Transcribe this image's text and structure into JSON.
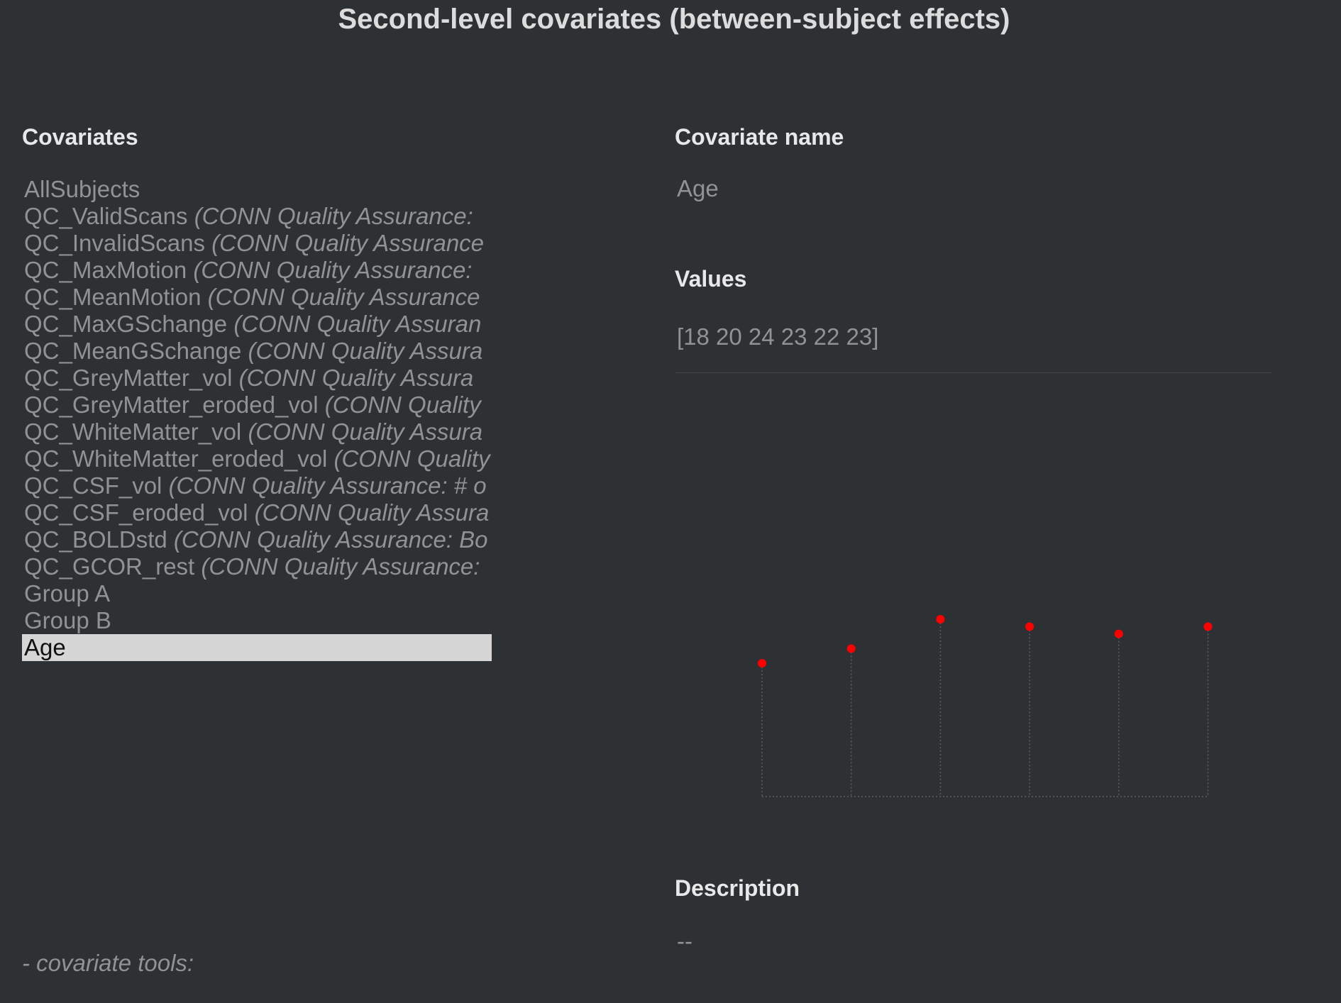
{
  "title": "Second-level covariates (between-subject effects)",
  "covariates_panel": {
    "label": "Covariates",
    "items": [
      {
        "name": "AllSubjects",
        "desc": ""
      },
      {
        "name": "QC_ValidScans",
        "desc": "(CONN Quality Assurance:"
      },
      {
        "name": "QC_InvalidScans",
        "desc": "(CONN Quality Assurance"
      },
      {
        "name": "QC_MaxMotion",
        "desc": "(CONN Quality Assurance:"
      },
      {
        "name": "QC_MeanMotion",
        "desc": "(CONN Quality Assurance"
      },
      {
        "name": "QC_MaxGSchange",
        "desc": "(CONN Quality Assuran"
      },
      {
        "name": "QC_MeanGSchange",
        "desc": "(CONN Quality Assura"
      },
      {
        "name": "QC_GreyMatter_vol",
        "desc": "(CONN Quality Assura"
      },
      {
        "name": "QC_GreyMatter_eroded_vol",
        "desc": "(CONN Quality"
      },
      {
        "name": "QC_WhiteMatter_vol",
        "desc": "(CONN Quality Assura"
      },
      {
        "name": "QC_WhiteMatter_eroded_vol",
        "desc": "(CONN Quality"
      },
      {
        "name": "QC_CSF_vol",
        "desc": "(CONN Quality Assurance: # o"
      },
      {
        "name": "QC_CSF_eroded_vol",
        "desc": "(CONN Quality Assura"
      },
      {
        "name": "QC_BOLDstd",
        "desc": "(CONN Quality Assurance: Bo"
      },
      {
        "name": "QC_GCOR_rest",
        "desc": "(CONN Quality Assurance:"
      },
      {
        "name": "Group A",
        "desc": ""
      },
      {
        "name": "Group B",
        "desc": ""
      },
      {
        "name": "Age",
        "desc": "",
        "selected": true
      }
    ]
  },
  "details": {
    "name_label": "Covariate name",
    "name_value": "Age",
    "values_label": "Values",
    "values_value": "[18 20 24 23 22 23]",
    "description_label": "Description",
    "description_value": "--"
  },
  "footer": {
    "tools_label": "- covariate tools:"
  },
  "colors": {
    "background": "#2e3134",
    "marker": "#ff0000",
    "selected_bg": "#d6d6d6"
  },
  "chart_data": {
    "type": "scatter",
    "style": "stem",
    "x": [
      1,
      2,
      3,
      4,
      5,
      6
    ],
    "values": [
      18,
      20,
      24,
      23,
      22,
      23
    ],
    "title": "",
    "xlabel": "",
    "ylabel": "",
    "grid": false,
    "legend": "none"
  }
}
